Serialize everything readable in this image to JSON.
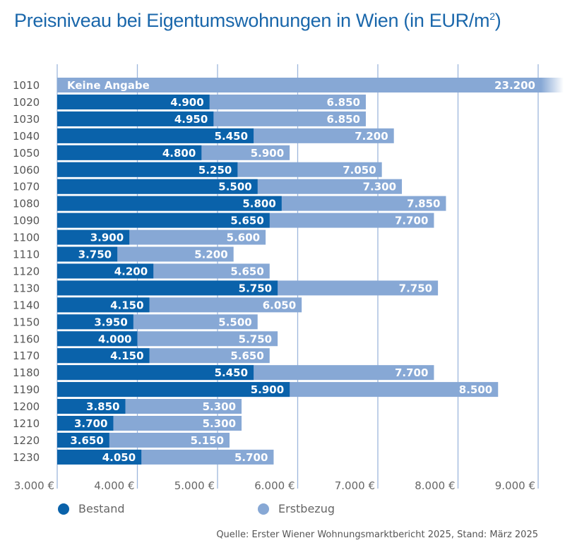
{
  "title_main": "Preisniveau bei Eigentumswohnungen in Wien (in EUR/m",
  "title_sup": "2",
  "title_end": ")",
  "source": "Quelle: Erster Wiener Wohnungsmarktbericht 2025, Stand: März 2025",
  "colors": {
    "bestand": "#0a62aa",
    "erstbezug": "#87a8d5",
    "grid": "#9db6dc",
    "title": "#1a67ab"
  },
  "chart_data": {
    "type": "bar",
    "orientation": "horizontal",
    "stacked": false,
    "title": "Preisniveau bei Eigentumswohnungen in Wien (in EUR/m²)",
    "xlabel": "",
    "ylabel": "",
    "xlim": [
      3000,
      9000
    ],
    "grid": true,
    "legend_position": "bottom",
    "x_ticks": [
      "3.000 €",
      "4.000 €",
      "5.000 €",
      "6.000 €",
      "7.000 €",
      "8.000 €",
      "9.000 €"
    ],
    "x_tick_values": [
      3000,
      4000,
      5000,
      6000,
      7000,
      8000,
      9000
    ],
    "categories": [
      "1010",
      "1020",
      "1030",
      "1040",
      "1050",
      "1060",
      "1070",
      "1080",
      "1090",
      "1100",
      "1110",
      "1120",
      "1130",
      "1140",
      "1150",
      "1160",
      "1170",
      "1180",
      "1190",
      "1200",
      "1210",
      "1220",
      "1230"
    ],
    "series": [
      {
        "name": "Bestand",
        "values": [
          null,
          4900,
          4950,
          5450,
          4800,
          5250,
          5500,
          5800,
          5650,
          3900,
          3750,
          4200,
          5750,
          4150,
          3950,
          4000,
          4150,
          5450,
          5900,
          3850,
          3700,
          3650,
          4050
        ],
        "labels": [
          "Keine Angabe",
          "4.900",
          "4.950",
          "5.450",
          "4.800",
          "5.250",
          "5.500",
          "5.800",
          "5.650",
          "3.900",
          "3.750",
          "4.200",
          "5.750",
          "4.150",
          "3.950",
          "4.000",
          "4.150",
          "5.450",
          "5.900",
          "3.850",
          "3.700",
          "3.650",
          "4.050"
        ]
      },
      {
        "name": "Erstbezug",
        "values": [
          23200,
          6850,
          6850,
          7200,
          5900,
          7050,
          7300,
          7850,
          7700,
          5600,
          5200,
          5650,
          7750,
          6050,
          5500,
          5750,
          5650,
          7700,
          8500,
          5300,
          5300,
          5150,
          5700
        ],
        "labels": [
          "23.200",
          "6.850",
          "6.850",
          "7.200",
          "5.900",
          "7.050",
          "7.300",
          "7.850",
          "7.700",
          "5.600",
          "5.200",
          "5.650",
          "7.750",
          "6.050",
          "5.500",
          "5.750",
          "5.650",
          "7.700",
          "8.500",
          "5.300",
          "5.300",
          "5.150",
          "5.700"
        ]
      }
    ],
    "annotations": [
      "Keine Angabe",
      "1010 Erstbezug bar truncated (exceeds axis)"
    ]
  },
  "legend": [
    {
      "label": "Bestand"
    },
    {
      "label": "Erstbezug"
    }
  ]
}
